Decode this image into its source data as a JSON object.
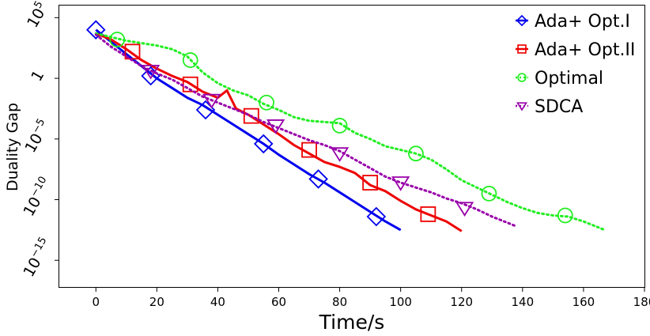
{
  "chart_data": {
    "type": "line",
    "title": "",
    "xlabel": "Time/s",
    "ylabel": "Duality Gap",
    "xlim": [
      -12,
      180
    ],
    "ylim_log10": [
      -17.2,
      6.0
    ],
    "y_scale": "log",
    "grid": false,
    "legend_position": "top-right",
    "x_ticks": [
      0,
      20,
      40,
      60,
      80,
      100,
      120,
      140,
      160,
      180
    ],
    "x_tick_labels": [
      "0",
      "20",
      "40",
      "60",
      "80",
      "100",
      "120",
      "140",
      "160",
      "180"
    ],
    "y_ticks": [
      {
        "log10": 5,
        "base": "10",
        "exp": "5"
      },
      {
        "log10": 0,
        "base": "1",
        "exp": ""
      },
      {
        "log10": -5,
        "base": "10",
        "exp": "-5"
      },
      {
        "log10": -10,
        "base": "10",
        "exp": "-10"
      },
      {
        "log10": -15,
        "base": "10",
        "exp": "-15"
      }
    ],
    "series": [
      {
        "name": "Ada+ Opt.I",
        "color": "#0000ee",
        "line": "solid",
        "marker": "diamond",
        "points": [
          [
            0,
            4.0
          ],
          [
            5,
            3.0
          ],
          [
            10,
            2.0
          ],
          [
            15,
            1.0
          ],
          [
            20,
            0.0
          ],
          [
            25,
            -0.8
          ],
          [
            30,
            -1.6
          ],
          [
            35,
            -2.2
          ],
          [
            40,
            -3.0
          ],
          [
            45,
            -3.8
          ],
          [
            50,
            -4.6
          ],
          [
            55,
            -5.4
          ],
          [
            60,
            -6.3
          ],
          [
            65,
            -7.1
          ],
          [
            70,
            -7.9
          ],
          [
            75,
            -8.6
          ],
          [
            80,
            -9.4
          ],
          [
            85,
            -10.2
          ],
          [
            90,
            -11.0
          ],
          [
            95,
            -11.8
          ],
          [
            100,
            -12.5
          ]
        ],
        "markers": [
          [
            0,
            4.0
          ],
          [
            18,
            0.2
          ],
          [
            36,
            -2.6
          ],
          [
            55,
            -5.4
          ],
          [
            73,
            -8.3
          ],
          [
            92,
            -11.4
          ]
        ]
      },
      {
        "name": "Ada+ Opt.II",
        "color": "#ee0000",
        "line": "solid",
        "marker": "square",
        "points": [
          [
            0,
            3.7
          ],
          [
            5,
            3.2
          ],
          [
            10,
            2.4
          ],
          [
            15,
            1.5
          ],
          [
            20,
            0.8
          ],
          [
            25,
            0.2
          ],
          [
            30,
            -0.3
          ],
          [
            35,
            -1.1
          ],
          [
            40,
            -1.6
          ],
          [
            43,
            -1.0
          ],
          [
            46,
            -2.5
          ],
          [
            50,
            -3.0
          ],
          [
            55,
            -3.8
          ],
          [
            60,
            -4.6
          ],
          [
            65,
            -5.5
          ],
          [
            70,
            -6.2
          ],
          [
            75,
            -6.9
          ],
          [
            80,
            -7.3
          ],
          [
            85,
            -7.8
          ],
          [
            90,
            -8.8
          ],
          [
            95,
            -9.3
          ],
          [
            100,
            -10.1
          ],
          [
            105,
            -10.8
          ],
          [
            110,
            -11.3
          ],
          [
            115,
            -11.8
          ],
          [
            120,
            -12.6
          ]
        ],
        "markers": [
          [
            12,
            2.2
          ],
          [
            31,
            -0.5
          ],
          [
            51,
            -3.1
          ],
          [
            70,
            -5.9
          ],
          [
            90,
            -8.6
          ],
          [
            109,
            -11.2
          ]
        ]
      },
      {
        "name": "Optimal",
        "color": "#22ee22",
        "line": "dotted",
        "marker": "circle",
        "points": [
          [
            0,
            3.7
          ],
          [
            10,
            3.1
          ],
          [
            15,
            2.9
          ],
          [
            20,
            2.7
          ],
          [
            25,
            2.4
          ],
          [
            30,
            1.8
          ],
          [
            35,
            0.5
          ],
          [
            40,
            -0.4
          ],
          [
            45,
            -1.0
          ],
          [
            50,
            -1.4
          ],
          [
            55,
            -2.1
          ],
          [
            60,
            -2.6
          ],
          [
            65,
            -3.2
          ],
          [
            70,
            -3.5
          ],
          [
            75,
            -3.6
          ],
          [
            80,
            -3.7
          ],
          [
            85,
            -4.5
          ],
          [
            90,
            -5.0
          ],
          [
            95,
            -5.6
          ],
          [
            100,
            -5.9
          ],
          [
            105,
            -6.2
          ],
          [
            110,
            -6.7
          ],
          [
            115,
            -7.5
          ],
          [
            120,
            -8.4
          ],
          [
            125,
            -9.0
          ],
          [
            130,
            -9.6
          ],
          [
            135,
            -10.2
          ],
          [
            140,
            -10.7
          ],
          [
            145,
            -11.1
          ],
          [
            150,
            -11.3
          ],
          [
            155,
            -11.4
          ],
          [
            160,
            -11.8
          ],
          [
            165,
            -12.3
          ],
          [
            167,
            -12.5
          ]
        ],
        "markers": [
          [
            7,
            3.2
          ],
          [
            31,
            1.5
          ],
          [
            56,
            -2.0
          ],
          [
            80,
            -3.9
          ],
          [
            105,
            -6.2
          ],
          [
            129,
            -9.5
          ],
          [
            154,
            -11.3
          ]
        ]
      },
      {
        "name": "SDCA",
        "color": "#9900aa",
        "line": "dotted",
        "marker": "triangle-down",
        "points": [
          [
            0,
            3.6
          ],
          [
            5,
            2.6
          ],
          [
            10,
            1.8
          ],
          [
            15,
            1.0
          ],
          [
            20,
            0.4
          ],
          [
            25,
            -0.1
          ],
          [
            30,
            -0.8
          ],
          [
            35,
            -1.5
          ],
          [
            40,
            -2.0
          ],
          [
            45,
            -2.5
          ],
          [
            50,
            -3.0
          ],
          [
            55,
            -3.6
          ],
          [
            60,
            -4.1
          ],
          [
            65,
            -4.6
          ],
          [
            70,
            -5.1
          ],
          [
            75,
            -5.5
          ],
          [
            80,
            -6.0
          ],
          [
            85,
            -6.7
          ],
          [
            90,
            -7.4
          ],
          [
            95,
            -8.1
          ],
          [
            100,
            -8.6
          ],
          [
            105,
            -9.0
          ],
          [
            110,
            -9.4
          ],
          [
            115,
            -9.9
          ],
          [
            120,
            -10.3
          ],
          [
            125,
            -10.8
          ],
          [
            130,
            -11.4
          ],
          [
            135,
            -11.9
          ],
          [
            138,
            -12.2
          ]
        ],
        "markers": [
          [
            18,
            0.6
          ],
          [
            38,
            -1.8
          ],
          [
            59,
            -3.9
          ],
          [
            80,
            -6.2
          ],
          [
            100,
            -8.6
          ],
          [
            121,
            -10.7
          ]
        ]
      }
    ]
  }
}
